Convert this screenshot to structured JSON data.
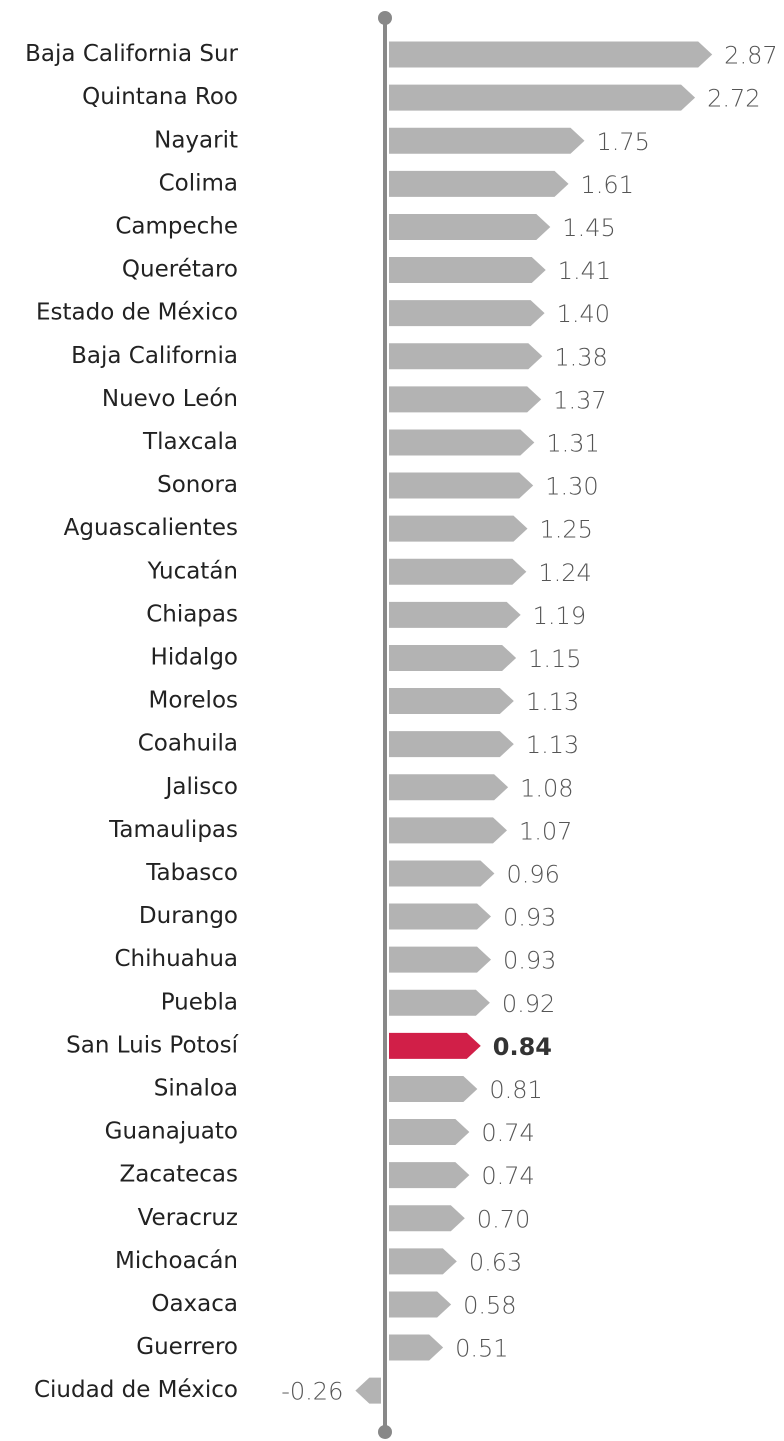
{
  "chart_data": {
    "type": "bar",
    "orientation": "horizontal",
    "categories": [
      "Baja California Sur",
      "Quintana Roo",
      "Nayarit",
      "Colima",
      "Campeche",
      "Querétaro",
      "Estado de México",
      "Baja California",
      "Nuevo León",
      "Tlaxcala",
      "Sonora",
      "Aguascalientes",
      "Yucatán",
      "Chiapas",
      "Hidalgo",
      "Morelos",
      "Coahuila",
      "Jalisco",
      "Tamaulipas",
      "Tabasco",
      "Durango",
      "Chihuahua",
      "Puebla",
      "San Luis Potosí",
      "Sinaloa",
      "Guanajuato",
      "Zacatecas",
      "Veracruz",
      "Michoacán",
      "Oaxaca",
      "Guerrero",
      "Ciudad de México"
    ],
    "values": [
      2.87,
      2.72,
      1.75,
      1.61,
      1.45,
      1.41,
      1.4,
      1.38,
      1.37,
      1.31,
      1.3,
      1.25,
      1.24,
      1.19,
      1.15,
      1.13,
      1.13,
      1.08,
      1.07,
      0.96,
      0.93,
      0.93,
      0.92,
      0.84,
      0.81,
      0.74,
      0.74,
      0.7,
      0.63,
      0.58,
      0.51,
      -0.26
    ],
    "value_labels": [
      "2.87",
      "2.72",
      "1.75",
      "1.61",
      "1.45",
      "1.41",
      "1.40",
      "1.38",
      "1.37",
      "1.31",
      "1.30",
      "1.25",
      "1.24",
      "1.19",
      "1.15",
      "1.13",
      "1.13",
      "1.08",
      "1.07",
      "0.96",
      "0.93",
      "0.93",
      "0.92",
      "0.84",
      "0.81",
      "0.74",
      "0.74",
      "0.70",
      "0.63",
      "0.58",
      "0.51",
      "-0.26"
    ],
    "color": "#b3b3b3",
    "highlight_color": "#d11f48",
    "highlight_index": 23,
    "xlim": [
      -0.3,
      2.9
    ]
  }
}
